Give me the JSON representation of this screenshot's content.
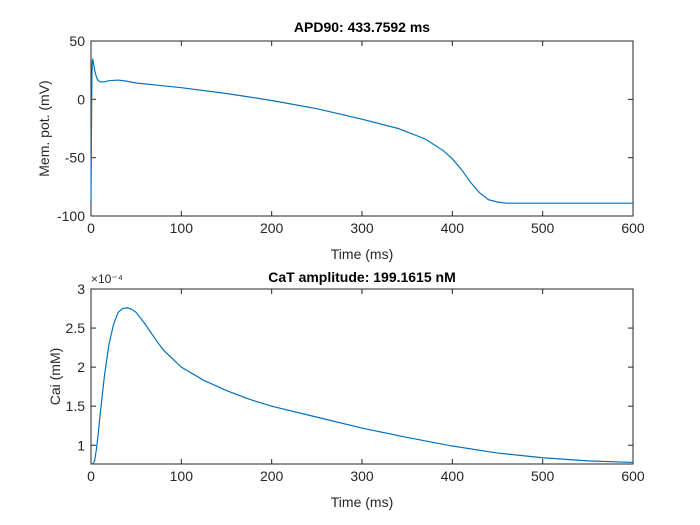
{
  "chart_data": [
    {
      "type": "line",
      "title": "APD90: 433.7592 ms",
      "xlabel": "Time (ms)",
      "ylabel": "Mem. pot. (mV)",
      "xlim": [
        0,
        600
      ],
      "ylim": [
        -100,
        50
      ],
      "xticks": [
        0,
        100,
        200,
        300,
        400,
        500,
        600
      ],
      "yticks": [
        -100,
        -50,
        0,
        50
      ],
      "grid": false,
      "color": "#0072BD",
      "series": [
        {
          "x": [
            0,
            0.5,
            1,
            1.5,
            2,
            3,
            4,
            6,
            8,
            10,
            15,
            20,
            30,
            40,
            50,
            75,
            100,
            150,
            200,
            250,
            300,
            340,
            370,
            390,
            400,
            410,
            420,
            430,
            440,
            450,
            460,
            480,
            500,
            550,
            600
          ],
          "y": [
            -88,
            -30,
            20,
            33,
            34,
            30,
            25,
            19,
            16,
            15,
            15,
            16,
            16.5,
            15.5,
            14,
            12,
            10,
            5,
            -1,
            -8,
            -17,
            -25,
            -34,
            -44,
            -51,
            -60,
            -71,
            -80,
            -86,
            -88,
            -89,
            -89,
            -89,
            -89,
            -89
          ]
        }
      ]
    },
    {
      "type": "line",
      "title": "CaT amplitude: 199.1615 nM",
      "xlabel": "Time (ms)",
      "ylabel": "Cai (mM)",
      "exponent_label": "×10⁻⁴",
      "xlim": [
        0,
        600
      ],
      "ylim": [
        0.76,
        3.0
      ],
      "xticks": [
        0,
        100,
        200,
        300,
        400,
        500,
        600
      ],
      "yticks": [
        1,
        1.5,
        2,
        2.5,
        3
      ],
      "grid": false,
      "color": "#0072BD",
      "series": [
        {
          "x": [
            0,
            2,
            4,
            6,
            8,
            10,
            15,
            20,
            25,
            30,
            35,
            40,
            45,
            50,
            60,
            70,
            80,
            100,
            125,
            150,
            175,
            200,
            250,
            300,
            350,
            400,
            450,
            500,
            550,
            600
          ],
          "y": [
            0.77,
            0.76,
            0.8,
            0.95,
            1.15,
            1.38,
            1.9,
            2.3,
            2.55,
            2.7,
            2.75,
            2.76,
            2.74,
            2.7,
            2.55,
            2.38,
            2.22,
            2.0,
            1.83,
            1.7,
            1.59,
            1.5,
            1.36,
            1.22,
            1.1,
            0.99,
            0.9,
            0.84,
            0.8,
            0.78
          ]
        }
      ]
    }
  ]
}
